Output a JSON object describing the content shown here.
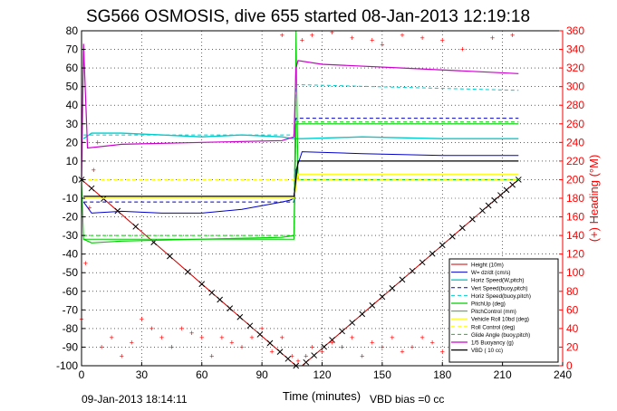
{
  "chart_data": {
    "type": "line",
    "title": "SG566 OSMOSIS, dive 655 started 08-Jan-2013 12:19:18",
    "xlabel": "Time (minutes)",
    "ylabel_right": "(+) Heading (°M)",
    "footer_left": "09-Jan-2013 18:14:11",
    "footer_right": "VBD bias =0 cc",
    "xlim": [
      0,
      240
    ],
    "ylim": [
      -100,
      80
    ],
    "y2lim": [
      0,
      360
    ],
    "x_ticks": [
      0,
      30,
      60,
      90,
      120,
      150,
      180,
      210,
      240
    ],
    "y_ticks": [
      -100,
      -90,
      -80,
      -70,
      -60,
      -50,
      -40,
      -30,
      -20,
      -10,
      0,
      10,
      20,
      30,
      40,
      50,
      60,
      70,
      80
    ],
    "y2_ticks": [
      0,
      20,
      40,
      60,
      80,
      100,
      120,
      140,
      160,
      180,
      200,
      220,
      240,
      260,
      280,
      300,
      320,
      340,
      360
    ],
    "grid": true,
    "legend_position": "bottom-right",
    "colors": {
      "height": "#cc0000",
      "w": "#0000cc",
      "horiz_w": "#00cccc",
      "vert_buoy": "#0000cc",
      "horiz_buoy": "#00cccc",
      "pitch": "#00cc00",
      "pitch_control": "#00cc00",
      "roll": "#ffff00",
      "roll_control": "#ffff00",
      "glide_angle": "#00cc00",
      "buoyancy": "#cc00cc",
      "vbd": "#000000",
      "heading": "#ff0000",
      "axis_right": "#ff0000"
    },
    "series": [
      {
        "name": "Height (10m)",
        "x": [
          0,
          107,
          110,
          218
        ],
        "y": [
          0,
          -100,
          -100,
          0
        ],
        "markers": [
          0,
          5,
          11,
          18,
          27,
          36,
          44,
          53,
          60,
          65,
          69,
          74,
          79,
          84,
          89,
          94,
          99,
          103,
          107,
          112,
          116,
          121,
          125,
          130,
          135,
          140,
          145,
          150,
          155,
          160,
          165,
          170,
          175,
          180,
          185,
          190,
          195,
          200,
          203,
          206,
          209,
          212,
          215,
          218
        ]
      },
      {
        "name": "W= dz/dt (cm/s)",
        "x": [
          1,
          5,
          20,
          40,
          60,
          80,
          100,
          104,
          106,
          107,
          110,
          140,
          180,
          218
        ],
        "y": [
          -12,
          -18,
          -17,
          -18,
          -18,
          -16,
          -12,
          -11,
          -10,
          5,
          15,
          14,
          13,
          13
        ]
      },
      {
        "name": "Horiz Speed(W,pitch)",
        "x": [
          1,
          5,
          20,
          40,
          60,
          80,
          100,
          106,
          107,
          110,
          140,
          180,
          218
        ],
        "y": [
          22,
          25,
          25,
          24,
          23,
          24,
          23,
          22,
          22,
          22,
          23,
          22,
          22
        ]
      },
      {
        "name": "Vert Speed(buoy,pitch)",
        "x": [
          1,
          106,
          107,
          110,
          218
        ],
        "y": [
          -12,
          -12,
          33,
          33,
          33
        ]
      },
      {
        "name": "Horiz Speed(buoy,pitch)",
        "x": [
          1,
          106,
          107,
          110,
          218
        ],
        "y": [
          24,
          24,
          51,
          51,
          48
        ]
      },
      {
        "name": "PitchUp (deg)",
        "x": [
          1,
          5,
          20,
          60,
          100,
          106,
          107,
          110,
          218
        ],
        "y": [
          -32,
          -34,
          -33,
          -32,
          -31,
          -30,
          30,
          30,
          30
        ]
      },
      {
        "name": "PitchControl (mm)",
        "x": [
          0,
          1,
          106,
          107,
          108,
          218
        ],
        "y": [
          0,
          -32,
          -32,
          80,
          0,
          0
        ]
      },
      {
        "name": "Vehicle Roll 10bd (deg)",
        "x": [
          1,
          106,
          108,
          218
        ],
        "y": [
          -10,
          -10,
          3,
          3
        ]
      },
      {
        "name": "Roll Control (deg)",
        "x": [
          0,
          218
        ],
        "y": [
          0,
          0
        ]
      },
      {
        "name": "Glide Angle (buoy,pitch)",
        "x": [
          1,
          106,
          107,
          218
        ],
        "y": [
          -30,
          -30,
          31,
          31
        ]
      },
      {
        "name": "1/5 Buoyancy (g)",
        "x": [
          0,
          1,
          3,
          20,
          60,
          100,
          106,
          107,
          108,
          120,
          160,
          218
        ],
        "y": [
          0,
          73,
          17,
          19,
          20,
          21,
          23,
          60,
          64,
          62,
          60,
          57
        ]
      },
      {
        "name": "VBD ( 10 cc)",
        "x": [
          1,
          106,
          108,
          218
        ],
        "y": [
          -9,
          -9,
          10,
          10
        ]
      }
    ],
    "heading_scatter": {
      "axis": "right",
      "x": [
        0,
        2,
        4,
        6,
        8,
        10,
        15,
        20,
        25,
        30,
        35,
        40,
        45,
        50,
        55,
        60,
        65,
        70,
        75,
        80,
        85,
        90,
        95,
        100,
        105,
        108,
        112,
        115,
        120,
        125,
        130,
        135,
        140,
        145,
        150,
        155,
        160,
        165,
        170,
        175,
        180,
        185,
        190,
        195,
        200,
        205,
        210,
        215
      ],
      "y": [
        50,
        110,
        170,
        210,
        240,
        20,
        30,
        10,
        25,
        50,
        40,
        30,
        20,
        40,
        35,
        30,
        10,
        30,
        25,
        20,
        30,
        40,
        15,
        30,
        10,
        5,
        10,
        20,
        15,
        25,
        20,
        30,
        10,
        25,
        20,
        30,
        15,
        20,
        30,
        25,
        15,
        20,
        10,
        30,
        15,
        20,
        10,
        15
      ]
    },
    "heading_upper": {
      "x": [
        100,
        110,
        115,
        125,
        135,
        145,
        150,
        160,
        170,
        180,
        190,
        205,
        215
      ],
      "y": [
        355,
        350,
        355,
        358,
        352,
        350,
        345,
        355,
        352,
        350,
        340,
        352,
        355
      ]
    }
  }
}
